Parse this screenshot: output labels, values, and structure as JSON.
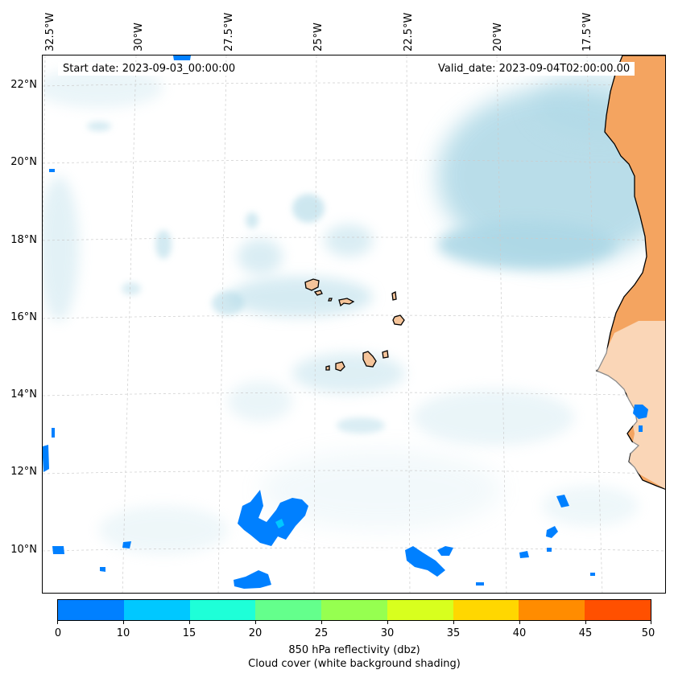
{
  "map": {
    "start_date": "Start date: 2023-09-03_00:00:00",
    "valid_date": "Valid_date: 2023-09-04T02:00:00.00",
    "longitude_labels": [
      "32.5°W",
      "30°W",
      "27.5°W",
      "25°W",
      "22.5°W",
      "20°W",
      "17.5°W"
    ],
    "latitude_labels": [
      "22°N",
      "20°N",
      "18°N",
      "16°N",
      "14°N",
      "12°N",
      "10°N"
    ],
    "colors": {
      "land": "#f4a460",
      "cloud": "#add8e6",
      "reflectivity_low": "#0080ff",
      "coastline": "#000000",
      "gridline": "#cccccc"
    }
  },
  "colorbar": {
    "ticks": [
      "0",
      "10",
      "15",
      "20",
      "25",
      "30",
      "35",
      "40",
      "45",
      "50"
    ],
    "colors": [
      "#0080ff",
      "#00c8ff",
      "#1effd8",
      "#64ff8c",
      "#96ff50",
      "#d8ff1e",
      "#ffd700",
      "#ff8c00",
      "#ff5000"
    ],
    "label_line1": "850 hPa reflectivity (dbz)",
    "label_line2": "Cloud cover (white background shading)"
  }
}
